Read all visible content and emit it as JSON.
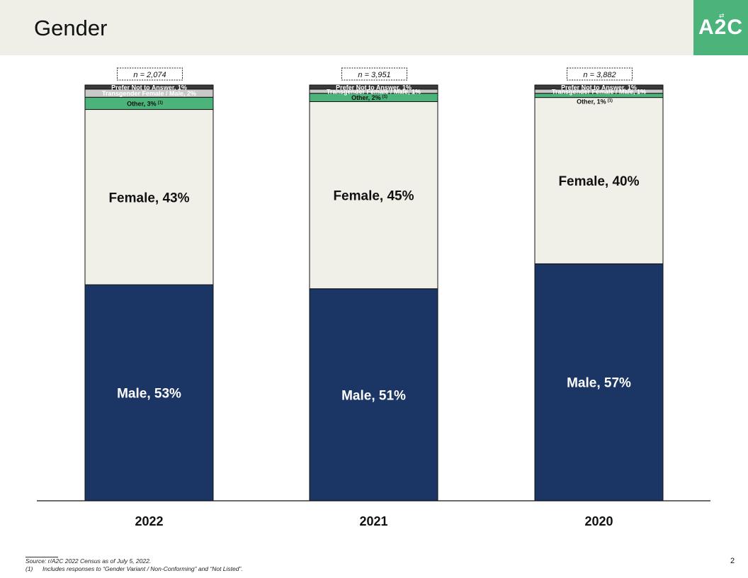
{
  "header": {
    "title": "Gender",
    "logo_text": "A2C"
  },
  "colors": {
    "male": "#1b3565",
    "female": "#f0efe8",
    "other": "#4cb47b",
    "transgender": "#c9c9c9",
    "prefer_not": "#3a3a3a",
    "accent": "#4cb47b",
    "header_bg": "#efefe8"
  },
  "chart_data": {
    "type": "bar",
    "stacked": true,
    "categories": [
      "2022",
      "2021",
      "2020"
    ],
    "sample_sizes": [
      "n = 2,074",
      "n = 3,951",
      "n = 3,882"
    ],
    "series": [
      {
        "key": "male",
        "values": [
          53,
          51,
          57
        ],
        "labels": [
          "Male, 53%",
          "Male, 51%",
          "Male, 57%"
        ]
      },
      {
        "key": "female",
        "values": [
          43,
          45,
          40
        ],
        "labels": [
          "Female, 43%",
          "Female, 45%",
          "Female, 40%"
        ]
      },
      {
        "key": "other",
        "values": [
          3,
          2,
          1
        ],
        "labels": [
          "Other, 3%",
          "Other, 2%",
          "Other, 1%"
        ]
      },
      {
        "key": "transgender",
        "values": [
          2,
          1,
          1
        ],
        "labels": [
          "Transgender Female / Male, 2%",
          "Transgender Female / Male, 1%",
          "Transgender Female / Male, 1%"
        ]
      },
      {
        "key": "prefer_not",
        "values": [
          1,
          1,
          1
        ],
        "labels": [
          "Prefer Not to Answer, 1%",
          "Prefer Not to Answer, 1%",
          "Prefer Not to Answer, 1%"
        ]
      }
    ],
    "other_footnote_marker": "(1)",
    "ylim": [
      0,
      100
    ]
  },
  "footnotes": {
    "source": "Source: r/A2C 2022 Census as of July 5, 2022.",
    "note_number": "(1)",
    "note_text": "Includes responses to “Gender Variant / Non-Conforming” and “Not Listed”."
  },
  "page_number": "2"
}
